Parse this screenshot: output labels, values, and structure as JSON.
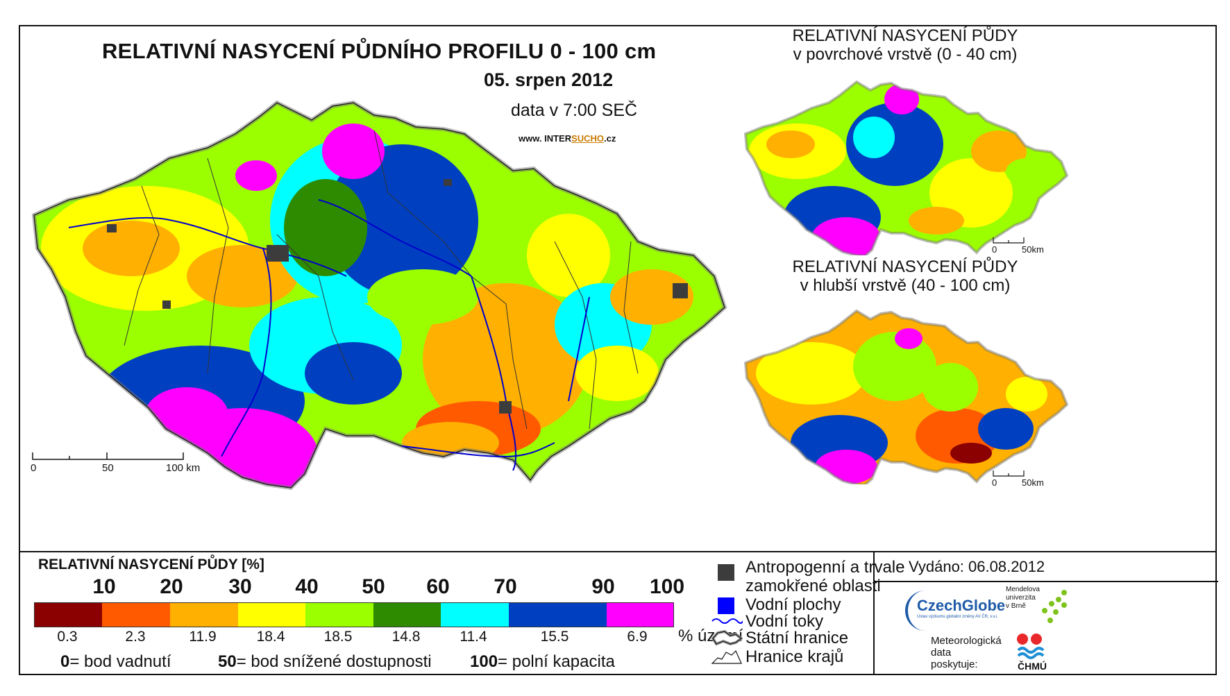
{
  "title": "RELATIVNÍ NASYCENÍ PŮDNÍHO PROFILU 0 - 100 cm",
  "date": "05. srpen 2012",
  "time": "data v 7:00 SEČ",
  "website": {
    "prefix": "www. INTER",
    "highlight": "SUCHO",
    "suffix": ".cz"
  },
  "main_scale": {
    "labels": [
      "0",
      "50",
      "100 km"
    ]
  },
  "inset_top": {
    "title_line1": "RELATIVNÍ NASYCENÍ PŮDY",
    "title_line2": "v povrchové vrstvě (0 - 40 cm)",
    "scale": [
      "0",
      "50km"
    ]
  },
  "inset_bottom": {
    "title_line1": "RELATIVNÍ NASYCENÍ PŮDY",
    "title_line2": "v hlubší vrstvě (40 - 100 cm)",
    "scale": [
      "0",
      "50km"
    ]
  },
  "legend": {
    "title": "RELATIVNÍ NASYCENÍ PŮDY [%]",
    "ticks": [
      "10",
      "20",
      "30",
      "40",
      "50",
      "60",
      "70",
      "90",
      "100"
    ],
    "colors": [
      "#8b0000",
      "#ff5a00",
      "#ffb000",
      "#ffff00",
      "#9cff00",
      "#2e8b00",
      "#00ffff",
      "#0040c0",
      "#ff00ff"
    ],
    "percent_of_territory": [
      "0.3",
      "2.3",
      "11.9",
      "18.4",
      "18.5",
      "14.8",
      "11.4",
      "15.5",
      "6.9"
    ],
    "percent_label": "% území",
    "definitions": [
      {
        "num": "0",
        "text": "= bod vadnutí"
      },
      {
        "num": "50",
        "text": "= bod snížené dostupnosti"
      },
      {
        "num": "100",
        "text": "= polní kapacita"
      }
    ]
  },
  "map_key": {
    "items": [
      {
        "icon": "gray-square-icon",
        "color": "#3c3c3c",
        "label_line1": "Antropogenní a trvale",
        "label_line2": "zamokřené oblasti"
      },
      {
        "icon": "blue-square-icon",
        "color": "#0000ff",
        "label_line1": "Vodní plochy"
      },
      {
        "icon": "blue-wave-icon",
        "color": "#0000ff",
        "label_line1": "Vodní toky"
      },
      {
        "icon": "state-border-icon",
        "color": "#111111",
        "label_line1": "Státní hranice"
      },
      {
        "icon": "region-border-icon",
        "color": "#111111",
        "label_line1": "Hranice krajů"
      }
    ]
  },
  "issued": "Vydáno: 06.08.2012",
  "credits": {
    "czechglobe": "CzechGlobe",
    "czechglobe_sub": "Ústav výzkumu globální změny AV ČR, v.v.i.",
    "mendel_line1": "Mendelova",
    "mendel_line2": "univerzita",
    "mendel_line3": "v Brně",
    "provider_line1": "Meteorologická",
    "provider_line2": "data",
    "provider_line3": "poskytuje:",
    "chmu": "ČHMÚ"
  }
}
